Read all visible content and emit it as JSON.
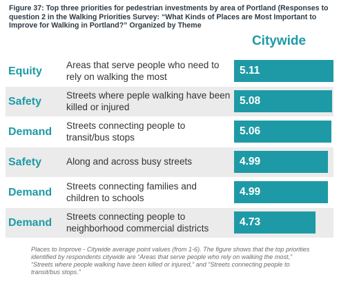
{
  "figure_title": "Figure 37:  Top three priorities for pedestrian investments by area of Portland (Responses to question 2 in the Walking Priorities Survey: “What Kinds of Places are Most Important to Improve for Walking in Portland?” Organized by Theme",
  "caption": "Places to Improve - Citywide average point values (from 1-6). The figure shows that the top priorities identified by respondents citywide are “Areas that serve people who rely on walking the most,” “Streets where people walking have been killed or injured,” and “Streets connecting people to transit/bus stops.”",
  "colors": {
    "accent": "#1e9aa6",
    "row_shade": "#ebebeb",
    "text": "#333333"
  },
  "chart_data": {
    "type": "bar",
    "orientation": "horizontal",
    "series": [
      {
        "name": "Citywide",
        "values": [
          5.11,
          5.08,
          5.06,
          4.99,
          4.99,
          4.73
        ]
      }
    ],
    "categories": [
      "Areas that serve people who need to rely on walking the most",
      "Streets where peple walking have been killed or injured",
      "Streets connecting people to transit/bus stops",
      "Along and across busy streets",
      "Streets connecting families and children to schools",
      "Streets connecting people to neighborhood commercial districts"
    ],
    "themes": [
      "Equity",
      "Safety",
      "Demand",
      "Safety",
      "Demand",
      "Demand"
    ],
    "value_labels": [
      "5.11",
      "5.08",
      "5.06",
      "4.99",
      "4.99",
      "4.73"
    ],
    "scale_note": "from 1-6"
  }
}
